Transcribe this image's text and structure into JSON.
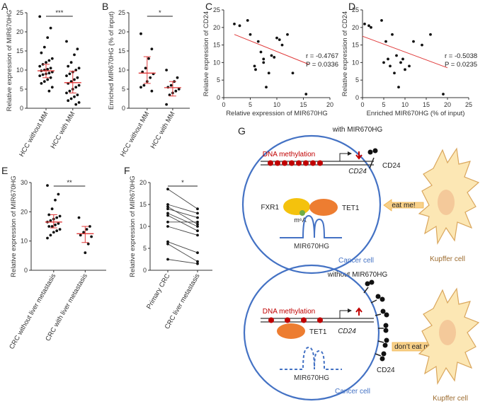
{
  "panels": {
    "A": {
      "label": "A",
      "ylabel": "Relative expression of MIR670HG",
      "yticks": [
        "0",
        "5",
        "10",
        "15",
        "20",
        "25"
      ],
      "categories": [
        "HCC without MM",
        "HCC with MM"
      ],
      "sig": "***"
    },
    "B": {
      "label": "B",
      "ylabel": "Enriched MIR670HG (% of input)",
      "yticks": [
        "0",
        "5",
        "10",
        "15",
        "20",
        "25"
      ],
      "categories": [
        "HCC without MM",
        "HCC with MM"
      ],
      "sig": "*"
    },
    "C": {
      "label": "C",
      "ylabel": "Relative expression of CD24",
      "xlabel": "Relative expression of MIR670HG",
      "xticks": [
        "0",
        "5",
        "10",
        "15",
        "20"
      ],
      "yticks": [
        "0",
        "5",
        "10",
        "15",
        "20",
        "25"
      ],
      "r": "r = -0.4767",
      "p": "P = 0.0336"
    },
    "D": {
      "label": "D",
      "ylabel": "Relative expression of CD24",
      "xlabel": "Enriched MIR670HG (% of input)",
      "xticks": [
        "0",
        "5",
        "10",
        "15",
        "20",
        "25"
      ],
      "yticks": [
        "0",
        "5",
        "10",
        "15",
        "20",
        "25"
      ],
      "r": "r = -0.5038",
      "p": "P = 0.0235"
    },
    "E": {
      "label": "E",
      "ylabel": "Relative expression of MIR670HG",
      "yticks": [
        "0",
        "10",
        "20",
        "30"
      ],
      "categories": [
        "CRC without liver metastasis",
        "CRC with liver metastasis"
      ],
      "sig": "**"
    },
    "F": {
      "label": "F",
      "ylabel": "Relative expression of MIR670HG",
      "yticks": [
        "0",
        "5",
        "10",
        "15",
        "20"
      ],
      "categories": [
        "Primary CRC",
        "CRC liver metastasis"
      ],
      "sig": "*"
    }
  },
  "diagram": {
    "label": "G",
    "top": {
      "title": "with MIR670HG",
      "dna": "DNA methylation",
      "gene": "CD24",
      "cd24": "CD24",
      "fxr1": "FXR1",
      "tet1": "TET1",
      "m6a": "m⁶A",
      "rna": "MIR670HG",
      "cell": "Cancer cell",
      "signal": "eat me!",
      "kupffer": "Kupffer cell"
    },
    "bottom": {
      "title": "without MIR670HG",
      "dna": "DNA methylation",
      "gene": "CD24",
      "cd24": "CD24",
      "tet1": "TET1",
      "rna": "MIR670HG",
      "cell": "Cancer cell",
      "signal": "don’t eat me!",
      "kupffer": "Kupffer cell"
    }
  },
  "chart_data": [
    {
      "type": "scatter",
      "panel": "A",
      "title": "",
      "ylabel": "Relative expression of MIR670HG",
      "ylim": [
        0,
        25
      ],
      "categories": [
        "HCC without MM",
        "HCC with MM"
      ],
      "series": [
        {
          "name": "HCC without MM",
          "values": [
            24,
            21,
            18.5,
            16,
            14.5,
            13,
            12.5,
            12,
            11.5,
            11,
            10.5,
            10.2,
            10,
            9.8,
            9.5,
            9.2,
            9,
            8.8,
            8.5,
            8,
            7.5,
            7,
            6.5,
            5.5,
            4.5
          ],
          "mean": 9.8,
          "err": [
            8,
            11.5
          ]
        },
        {
          "name": "HCC with MM",
          "values": [
            17.5,
            15.5,
            14,
            12,
            11,
            10.5,
            10,
            9.5,
            9,
            8.5,
            8,
            7.5,
            7,
            6.5,
            6,
            5.5,
            5,
            4.5,
            4,
            3.5,
            3,
            2.5,
            2,
            1.5,
            1
          ],
          "mean": 6.7,
          "err": [
            4,
            9.7
          ]
        }
      ]
    },
    {
      "type": "scatter",
      "panel": "B",
      "title": "",
      "ylabel": "Enriched MIR670HG (% of input)",
      "ylim": [
        0,
        25
      ],
      "categories": [
        "HCC without MM",
        "HCC with MM"
      ],
      "series": [
        {
          "name": "HCC without MM",
          "values": [
            19.5,
            15.5,
            13,
            10.5,
            9.5,
            9,
            8,
            7,
            6,
            5.5,
            4.5
          ],
          "mean": 9.2,
          "err": [
            6.5,
            13.5
          ]
        },
        {
          "name": "HCC with MM",
          "values": [
            10,
            8,
            7,
            6,
            5.5,
            5,
            4.5,
            4,
            3.5,
            1
          ],
          "mean": 5.4,
          "err": [
            3.2,
            7
          ]
        }
      ]
    },
    {
      "type": "scatter",
      "panel": "C",
      "xlabel": "Relative expression of MIR670HG",
      "ylabel": "Relative expression of CD24",
      "xlim": [
        0,
        20
      ],
      "ylim": [
        0,
        25
      ],
      "x": [
        2,
        3,
        4.5,
        5,
        6,
        6.5,
        7,
        7.5,
        8,
        8.5,
        9,
        9.5,
        10,
        10.5,
        11,
        12,
        13,
        15.5,
        7.5,
        5.8
      ],
      "y": [
        21,
        20.5,
        22,
        18,
        8,
        16,
        13,
        11,
        3,
        7,
        12,
        11.5,
        17,
        16.5,
        15,
        18,
        7,
        1,
        10,
        9
      ],
      "fit": {
        "x": [
          2,
          16
        ],
        "y": [
          18,
          9.5
        ]
      }
    },
    {
      "type": "scatter",
      "panel": "D",
      "xlabel": "Enriched MIR670HG (% of input)",
      "ylabel": "Relative expression of CD24",
      "xlim": [
        0,
        25
      ],
      "ylim": [
        0,
        25
      ],
      "x": [
        0.5,
        1.5,
        2,
        4.5,
        5,
        5.5,
        6,
        6.5,
        7,
        7.5,
        8,
        8.5,
        9,
        9.5,
        10,
        11,
        12,
        14,
        16,
        19
      ],
      "y": [
        21,
        20.5,
        20,
        22,
        10,
        16,
        11,
        9,
        18,
        7,
        12,
        3,
        10,
        11,
        8,
        9,
        16,
        15,
        18,
        1
      ],
      "fit": {
        "x": [
          0,
          20
        ],
        "y": [
          17.5,
          8.5
        ]
      }
    },
    {
      "type": "scatter",
      "panel": "E",
      "ylabel": "Relative expression of MIR670HG",
      "ylim": [
        0,
        30
      ],
      "categories": [
        "CRC without liver metastasis",
        "CRC with liver metastasis"
      ],
      "series": [
        {
          "name": "CRC without liver metastasis",
          "values": [
            29,
            26,
            24,
            21,
            19,
            18.5,
            18,
            17.5,
            17,
            16.5,
            16,
            15.5,
            15,
            15,
            14,
            13.5,
            13,
            12,
            11
          ],
          "mean": 16.5,
          "err": [
            14.5,
            19
          ]
        },
        {
          "name": "CRC with liver metastasis",
          "values": [
            18,
            15,
            14,
            13,
            12,
            11.5,
            9,
            6
          ],
          "mean": 12.5,
          "err": [
            9.5,
            15
          ]
        }
      ]
    },
    {
      "type": "line",
      "panel": "F",
      "ylabel": "Relative expression of MIR670HG",
      "ylim": [
        0,
        20
      ],
      "categories": [
        "Primary CRC",
        "CRC liver metastasis"
      ],
      "pairs": [
        [
          18.5,
          14
        ],
        [
          15,
          13
        ],
        [
          14.5,
          10.5
        ],
        [
          14,
          12
        ],
        [
          13,
          10
        ],
        [
          12.5,
          9
        ],
        [
          11,
          11
        ],
        [
          10,
          8
        ],
        [
          6.5,
          4
        ],
        [
          6,
          2
        ],
        [
          2.5,
          1.5
        ]
      ]
    }
  ]
}
